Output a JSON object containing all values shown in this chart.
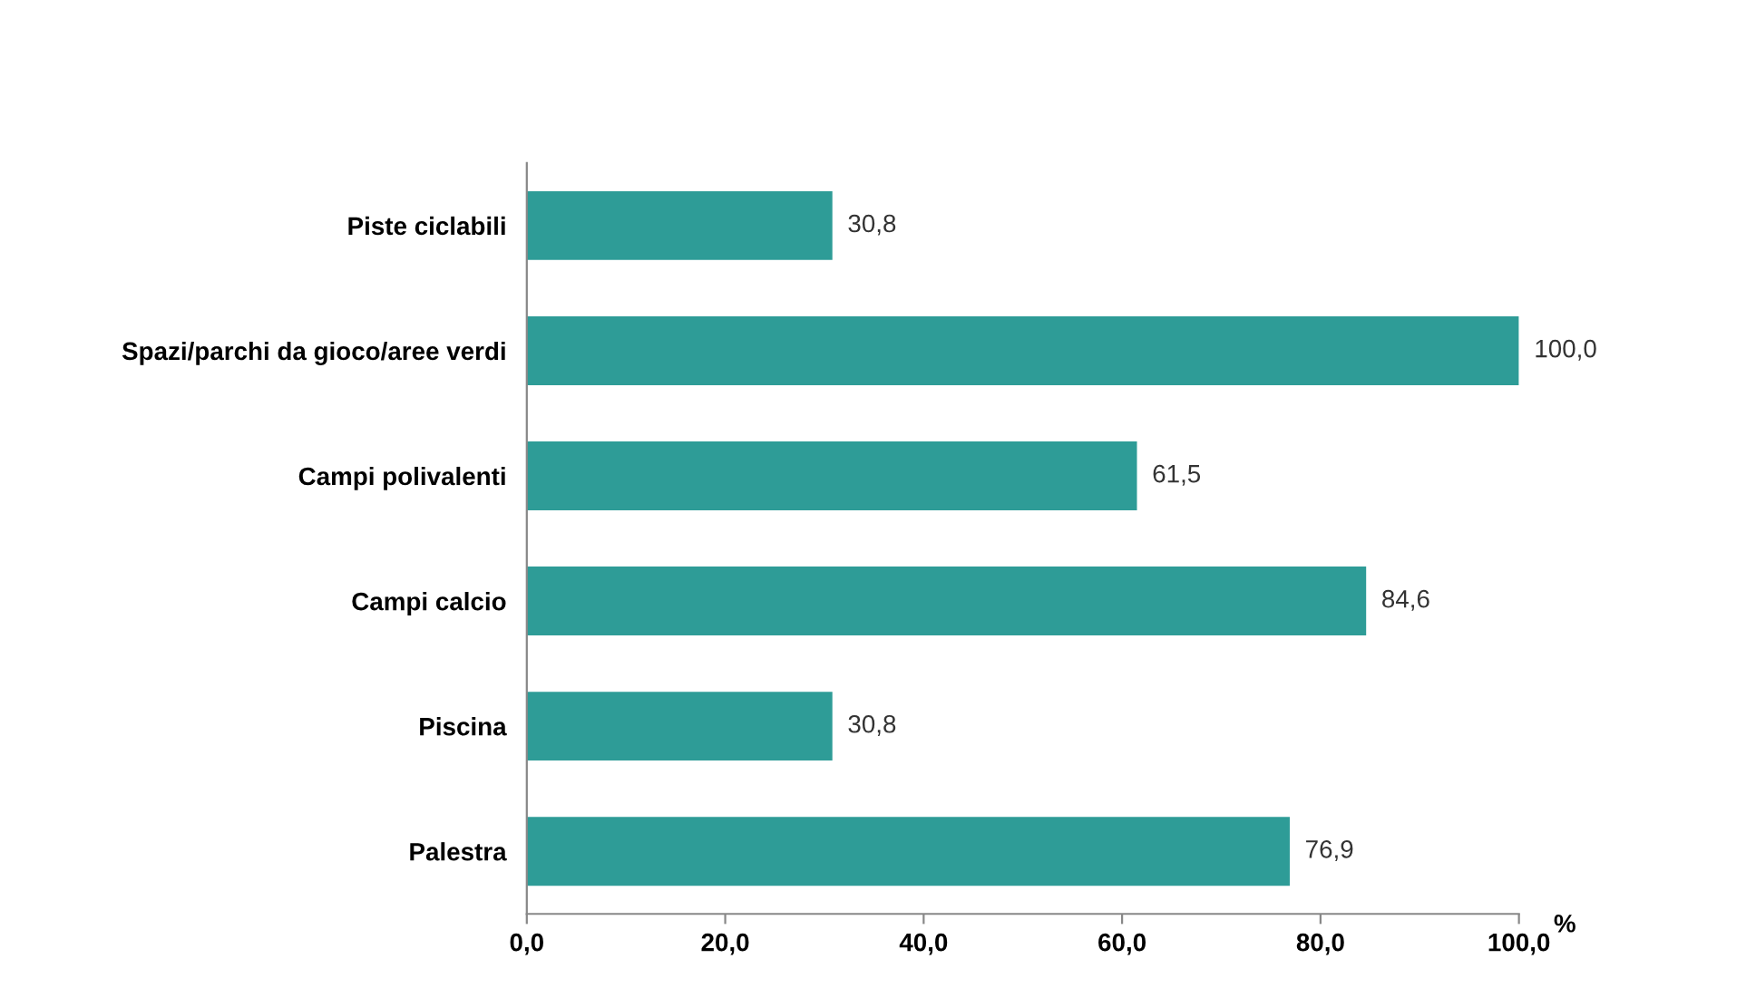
{
  "chart_data": {
    "type": "bar",
    "orientation": "horizontal",
    "xlabel": "%",
    "categories": [
      "Piste ciclabili",
      "Spazi/parchi da gioco/aree verdi",
      "Campi polivalenti",
      "Campi calcio",
      "Piscina",
      "Palestra"
    ],
    "values": [
      30.8,
      100.0,
      61.5,
      84.6,
      30.8,
      76.9
    ],
    "value_labels": [
      "30,8",
      "100,0",
      "61,5",
      "84,6",
      "30,8",
      "76,9"
    ],
    "color": "#2e9c97",
    "xlim": [
      0,
      100
    ],
    "xticks": [
      {
        "value": 0,
        "label": "0,0"
      },
      {
        "value": 20,
        "label": "20,0"
      },
      {
        "value": 40,
        "label": "40,0"
      },
      {
        "value": 60,
        "label": "60,0"
      },
      {
        "value": 80,
        "label": "80,0"
      },
      {
        "value": 100,
        "label": "100,0"
      }
    ],
    "grid": false
  }
}
